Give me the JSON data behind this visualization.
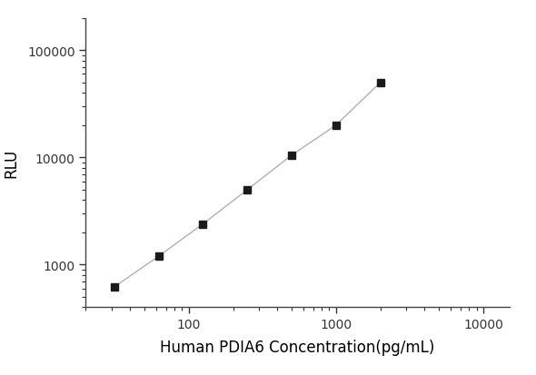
{
  "x": [
    31.25,
    62.5,
    125,
    250,
    500,
    1000,
    2000
  ],
  "y": [
    620,
    1200,
    2400,
    5000,
    10500,
    20000,
    50000
  ],
  "xlabel": "Human PDIA6 Concentration(pg/mL)",
  "ylabel": "RLU",
  "xlim": [
    20,
    15000
  ],
  "ylim": [
    400,
    200000
  ],
  "xticks": [
    100,
    1000,
    10000
  ],
  "yticks": [
    1000,
    10000,
    100000
  ],
  "line_color": "#b0b0b0",
  "marker_color": "#1a1a1a",
  "marker_size": 6,
  "line_width": 1.0,
  "background_color": "#ffffff",
  "xlabel_fontsize": 12,
  "ylabel_fontsize": 12,
  "tick_labelsize": 10
}
